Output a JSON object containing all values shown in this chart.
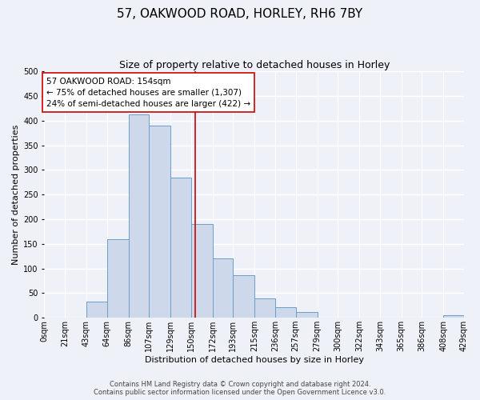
{
  "title": "57, OAKWOOD ROAD, HORLEY, RH6 7BY",
  "subtitle": "Size of property relative to detached houses in Horley",
  "xlabel": "Distribution of detached houses by size in Horley",
  "ylabel": "Number of detached properties",
  "bin_edges": [
    0,
    21,
    43,
    64,
    86,
    107,
    129,
    150,
    172,
    193,
    215,
    236,
    257,
    279,
    300,
    322,
    343,
    365,
    386,
    408,
    429
  ],
  "bin_heights": [
    0,
    0,
    33,
    160,
    413,
    390,
    285,
    190,
    120,
    86,
    40,
    22,
    11,
    0,
    0,
    0,
    0,
    0,
    0,
    5
  ],
  "bar_facecolor": "#cdd9ea",
  "bar_edgecolor": "#6b9ec8",
  "vline_x": 154,
  "vline_color": "#cc0000",
  "annotation_text": "57 OAKWOOD ROAD: 154sqm\n← 75% of detached houses are smaller (1,307)\n24% of semi-detached houses are larger (422) →",
  "annotation_box_edgecolor": "#cc0000",
  "annotation_box_facecolor": "#ffffff",
  "ylim": [
    0,
    500
  ],
  "yticks": [
    0,
    50,
    100,
    150,
    200,
    250,
    300,
    350,
    400,
    450,
    500
  ],
  "footer_line1": "Contains HM Land Registry data © Crown copyright and database right 2024.",
  "footer_line2": "Contains public sector information licensed under the Open Government Licence v3.0.",
  "bg_color": "#eef2f8",
  "title_fontsize": 11,
  "subtitle_fontsize": 9,
  "axis_label_fontsize": 8,
  "ylabel_fontsize": 8,
  "tick_fontsize": 7,
  "annotation_fontsize": 7.5,
  "footer_fontsize": 6,
  "tick_labels": [
    "0sqm",
    "21sqm",
    "43sqm",
    "64sqm",
    "86sqm",
    "107sqm",
    "129sqm",
    "150sqm",
    "172sqm",
    "193sqm",
    "215sqm",
    "236sqm",
    "257sqm",
    "279sqm",
    "300sqm",
    "322sqm",
    "343sqm",
    "365sqm",
    "386sqm",
    "408sqm",
    "429sqm"
  ]
}
